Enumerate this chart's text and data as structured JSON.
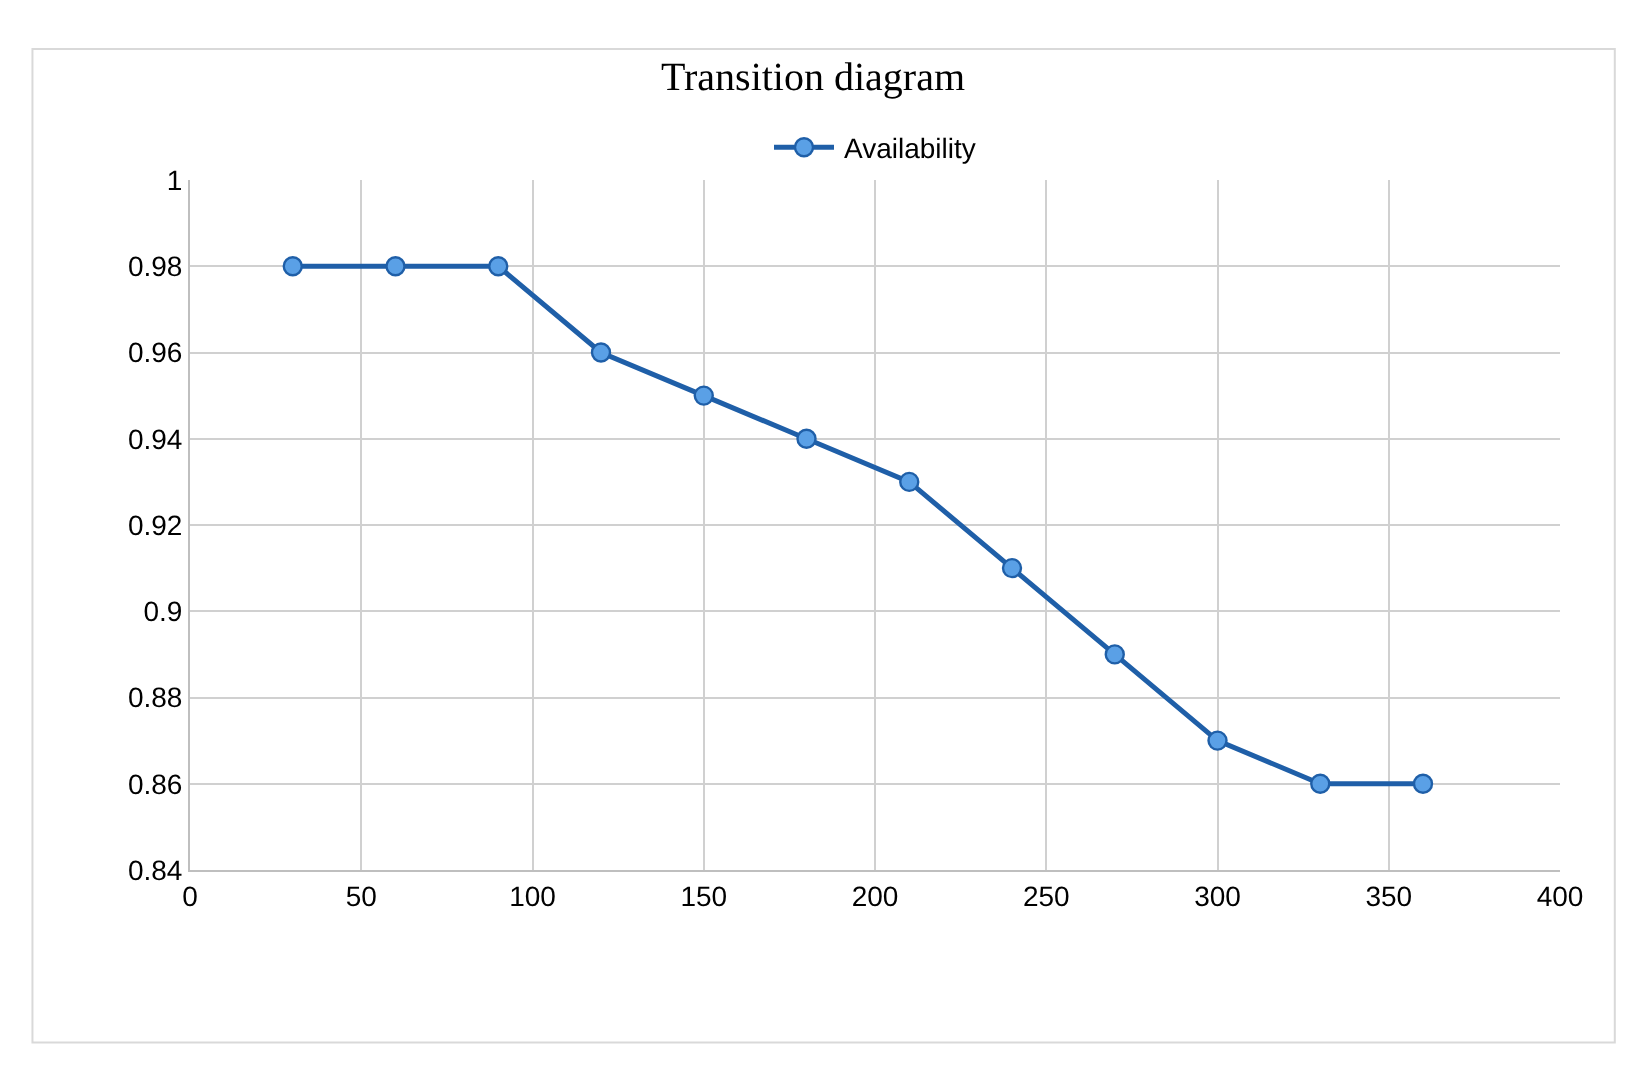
{
  "chart_data": {
    "type": "line",
    "title": "Transition diagram",
    "x": [
      30,
      60,
      90,
      120,
      150,
      180,
      210,
      240,
      270,
      300,
      330,
      360
    ],
    "series": [
      {
        "name": "Availability",
        "color": "#1f5fa8",
        "values": [
          0.98,
          0.98,
          0.98,
          0.96,
          0.95,
          0.94,
          0.93,
          0.91,
          0.89,
          0.87,
          0.86,
          0.86
        ]
      }
    ],
    "xlim": [
      0,
      400
    ],
    "xticks": [
      0,
      50,
      100,
      150,
      200,
      250,
      300,
      350,
      400
    ],
    "ylim": [
      0.84,
      1
    ],
    "yticks": [
      0.84,
      0.86,
      0.88,
      0.9,
      0.92,
      0.94,
      0.96,
      0.98,
      1
    ],
    "grid": true,
    "legend": "top",
    "marker": "circle",
    "line_style": "solid"
  }
}
